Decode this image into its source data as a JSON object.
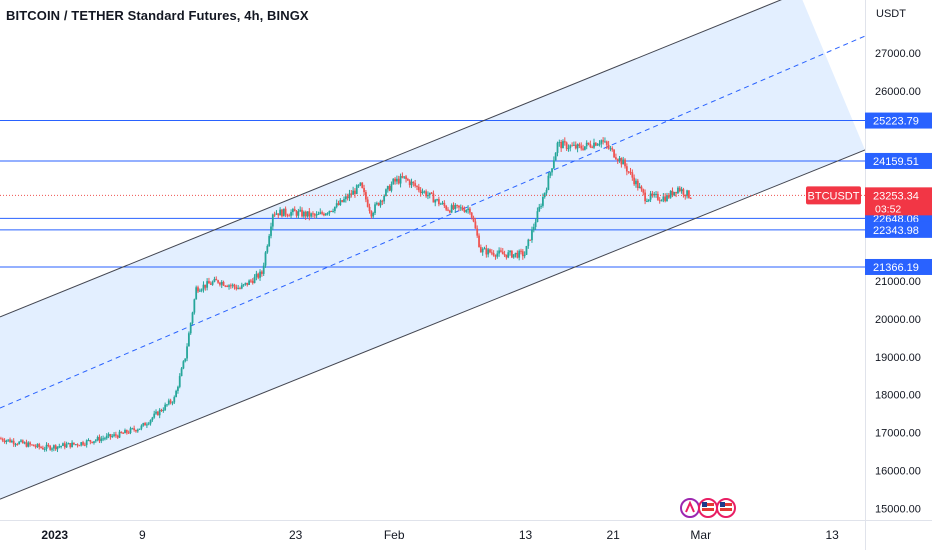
{
  "header": {
    "title": "BITCOIN / TETHER Standard Futures, 4h, BINGX",
    "unit": "USDT"
  },
  "colors": {
    "up": "#26a69a",
    "down": "#ef5350",
    "hline": "#2962ff",
    "channel_fill": "#e3efff",
    "channel_line": "#434651",
    "price_line": "#ef5350",
    "label_bg": "#2962ff",
    "current_bg": "#f23645"
  },
  "chart_data": {
    "type": "candlestick",
    "symbol": "BTCUSDT",
    "timeframe": "4h",
    "y_range": [
      14700,
      28400
    ],
    "x_range": [
      "2022-12-27",
      "2023-03-16"
    ],
    "y_ticks": [
      "15000.00",
      "16000.00",
      "17000.00",
      "18000.00",
      "19000.00",
      "20000.00",
      "21000.00",
      "26000.00",
      "27000.00"
    ],
    "x_ticks": [
      {
        "date": "2023-01-01",
        "label": "2023"
      },
      {
        "date": "2023-01-09",
        "label": "9"
      },
      {
        "date": "2023-01-23",
        "label": "23"
      },
      {
        "date": "2023-02-01",
        "label": "Feb"
      },
      {
        "date": "2023-02-13",
        "label": "13"
      },
      {
        "date": "2023-02-21",
        "label": "21"
      },
      {
        "date": "2023-03-01",
        "label": "Mar"
      },
      {
        "date": "2023-03-13",
        "label": "13"
      }
    ],
    "horizontal_levels": [
      {
        "price": 25223.79,
        "label": "25223.79"
      },
      {
        "price": 24159.51,
        "label": "24159.51"
      },
      {
        "price": 22648.06,
        "label": "22648.06"
      },
      {
        "price": 22343.98,
        "label": "22343.98"
      },
      {
        "price": 21366.19,
        "label": "21366.19"
      }
    ],
    "current_price": {
      "price": 23253.34,
      "label": "23253.34",
      "symbol_label": "BTCUSDT",
      "countdown": "03:52"
    },
    "channel": {
      "upper": [
        {
          "date": "2022-12-27",
          "price": 20050
        },
        {
          "date": "2023-03-10",
          "price": 28600
        }
      ],
      "middle": [
        {
          "date": "2022-12-27",
          "price": 17650
        },
        {
          "date": "2023-03-16",
          "price": 27450
        }
      ],
      "lower": [
        {
          "date": "2022-12-27",
          "price": 15250
        },
        {
          "date": "2023-03-16",
          "price": 24450
        }
      ]
    },
    "anchors": [
      {
        "date": "2022-12-27",
        "price": 16850
      },
      {
        "date": "2022-12-31",
        "price": 16600
      },
      {
        "date": "2023-01-03",
        "price": 16700
      },
      {
        "date": "2023-01-07",
        "price": 16950
      },
      {
        "date": "2023-01-09",
        "price": 17150
      },
      {
        "date": "2023-01-12",
        "price": 17900
      },
      {
        "date": "2023-01-13",
        "price": 19000
      },
      {
        "date": "2023-01-14",
        "price": 20800
      },
      {
        "date": "2023-01-16",
        "price": 21000
      },
      {
        "date": "2023-01-18",
        "price": 20800
      },
      {
        "date": "2023-01-20",
        "price": 21200
      },
      {
        "date": "2023-01-21",
        "price": 22800
      },
      {
        "date": "2023-01-23",
        "price": 22800
      },
      {
        "date": "2023-01-25",
        "price": 22700
      },
      {
        "date": "2023-01-27",
        "price": 23000
      },
      {
        "date": "2023-01-29",
        "price": 23500
      },
      {
        "date": "2023-01-30",
        "price": 22800
      },
      {
        "date": "2023-02-01",
        "price": 23600
      },
      {
        "date": "2023-02-02",
        "price": 23700
      },
      {
        "date": "2023-02-04",
        "price": 23300
      },
      {
        "date": "2023-02-06",
        "price": 22900
      },
      {
        "date": "2023-02-08",
        "price": 22900
      },
      {
        "date": "2023-02-09",
        "price": 21800
      },
      {
        "date": "2023-02-11",
        "price": 21700
      },
      {
        "date": "2023-02-13",
        "price": 21700
      },
      {
        "date": "2023-02-15",
        "price": 23500
      },
      {
        "date": "2023-02-16",
        "price": 24600
      },
      {
        "date": "2023-02-18",
        "price": 24500
      },
      {
        "date": "2023-02-20",
        "price": 24700
      },
      {
        "date": "2023-02-21",
        "price": 24400
      },
      {
        "date": "2023-02-22",
        "price": 24100
      },
      {
        "date": "2023-02-24",
        "price": 23200
      },
      {
        "date": "2023-02-26",
        "price": 23200
      },
      {
        "date": "2023-02-27",
        "price": 23450
      },
      {
        "date": "2023-02-28",
        "price": 23253
      }
    ],
    "logos": [
      "runner-logo",
      "flag-logo",
      "flag-logo"
    ]
  }
}
